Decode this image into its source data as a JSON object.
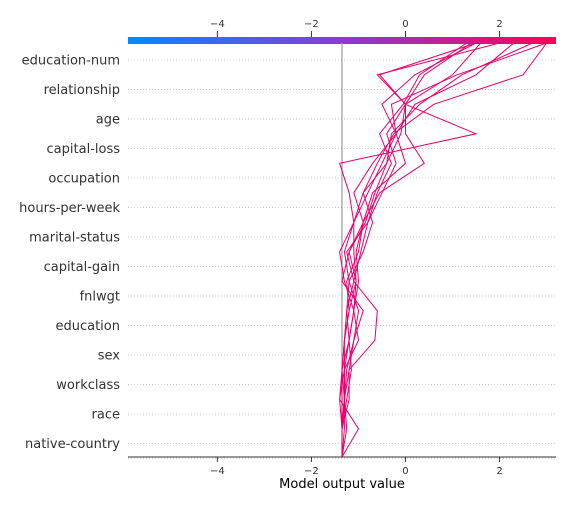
{
  "chart_data": {
    "type": "line",
    "subtype": "shap-decision-plot",
    "xlabel": "Model output value",
    "xlim": [
      -5.9,
      3.2
    ],
    "xticks": [
      -4,
      -2,
      0,
      2
    ],
    "base_value": -1.35,
    "features": [
      "education-num",
      "relationship",
      "age",
      "capital-loss",
      "occupation",
      "hours-per-week",
      "marital-status",
      "capital-gain",
      "fnlwgt",
      "education",
      "sex",
      "workclass",
      "race",
      "native-country"
    ],
    "colorbar": {
      "from": "#008bfb",
      "to": "#ff0052",
      "ticks": [
        -4,
        -2,
        0,
        2
      ]
    },
    "line_color": "#e8006e",
    "grid": true,
    "series": [
      {
        "values": [
          -1.35,
          -1.35,
          -1.25,
          -1.15,
          -1.2,
          -1.1,
          -1.0,
          -1.05,
          -0.9,
          -1.1,
          -0.7,
          -0.2,
          0.2,
          1.5,
          2.3
        ]
      },
      {
        "values": [
          -1.35,
          -1.35,
          -1.2,
          -1.2,
          -1.1,
          -1.0,
          -1.2,
          -0.9,
          -0.7,
          -0.9,
          -0.4,
          -0.3,
          0.3,
          1.2,
          2.7
        ]
      },
      {
        "values": [
          -1.35,
          -1.3,
          -1.3,
          -1.35,
          -1.3,
          -1.25,
          -1.2,
          -1.3,
          -1.1,
          -0.8,
          -0.5,
          -0.2,
          -0.5,
          0.2,
          1.5
        ]
      },
      {
        "values": [
          -1.35,
          -1.35,
          -1.4,
          -1.35,
          -1.2,
          -1.25,
          -1.1,
          -1.25,
          -0.8,
          -0.5,
          -0.2,
          -0.4,
          0.0,
          0.4,
          1.4
        ]
      },
      {
        "values": [
          -1.35,
          -1.35,
          -1.3,
          -1.3,
          -1.0,
          -1.1,
          -1.05,
          -1.2,
          -0.9,
          -0.7,
          0.0,
          -0.2,
          -0.3,
          1.1,
          3.0
        ]
      },
      {
        "values": [
          -1.35,
          -1.35,
          -1.3,
          -1.3,
          -1.2,
          -1.1,
          -1.3,
          -1.4,
          -1.1,
          -0.9,
          -0.6,
          -0.25,
          0.6,
          2.5,
          3.0
        ]
      },
      {
        "values": [
          -1.35,
          -1.35,
          -1.3,
          -1.25,
          -1.1,
          -0.9,
          -1.35,
          -1.2,
          -0.85,
          -0.65,
          -0.4,
          -0.1,
          0.0,
          1.0,
          1.6
        ]
      },
      {
        "values": [
          -1.35,
          -1.25,
          -1.3,
          -1.2,
          -0.65,
          -0.6,
          -1.1,
          -0.95,
          -0.8,
          -0.6,
          -0.3,
          -0.55,
          -0.05,
          0.3,
          1.3
        ]
      },
      {
        "values": [
          -1.35,
          -1.35,
          -1.35,
          -1.35,
          -1.3,
          -1.2,
          -1.05,
          -1.1,
          -1.1,
          -1.2,
          -1.4,
          1.5,
          0.0,
          -0.55,
          1.5
        ]
      },
      {
        "values": [
          -1.35,
          -1.0,
          -1.4,
          -1.3,
          -1.3,
          -1.2,
          -1.25,
          -1.0,
          -0.9,
          -0.55,
          0.4,
          0.0,
          0.0,
          -0.6,
          2.0
        ]
      }
    ]
  }
}
